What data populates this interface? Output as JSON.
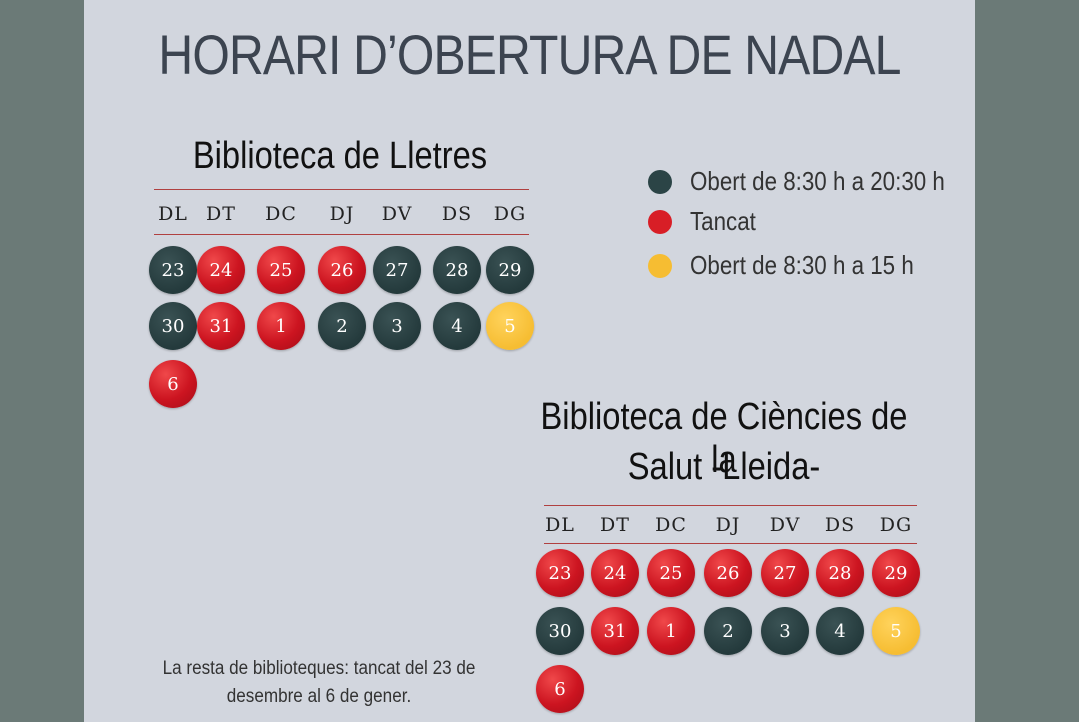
{
  "title": "HORARI D’OBERTURA DE NADAL",
  "colors": {
    "open": "#2b4446",
    "closed": "#d81e26",
    "half": "#f6bd32"
  },
  "legend": [
    {
      "status": "open",
      "label": "Obert de 8:30 h a 20:30 h"
    },
    {
      "status": "closed",
      "label": "Tancat"
    },
    {
      "status": "half",
      "label": "Obert de 8:30 h a 15 h"
    }
  ],
  "weekdays": [
    "DL",
    "DT",
    "DC",
    "DJ",
    "DV",
    "DS",
    "DG"
  ],
  "libraries": [
    {
      "name": "Biblioteca de Lletres",
      "days": [
        {
          "day": "23",
          "status": "open"
        },
        {
          "day": "24",
          "status": "closed"
        },
        {
          "day": "25",
          "status": "closed"
        },
        {
          "day": "26",
          "status": "closed"
        },
        {
          "day": "27",
          "status": "open"
        },
        {
          "day": "28",
          "status": "open"
        },
        {
          "day": "29",
          "status": "open"
        },
        {
          "day": "30",
          "status": "open"
        },
        {
          "day": "31",
          "status": "closed"
        },
        {
          "day": "1",
          "status": "closed"
        },
        {
          "day": "2",
          "status": "open"
        },
        {
          "day": "3",
          "status": "open"
        },
        {
          "day": "4",
          "status": "open"
        },
        {
          "day": "5",
          "status": "half"
        },
        {
          "day": "6",
          "status": "closed"
        }
      ]
    },
    {
      "name_line1": "Biblioteca de Ciències de la",
      "name_line2": "Salut -Lleida-",
      "days": [
        {
          "day": "23",
          "status": "closed"
        },
        {
          "day": "24",
          "status": "closed"
        },
        {
          "day": "25",
          "status": "closed"
        },
        {
          "day": "26",
          "status": "closed"
        },
        {
          "day": "27",
          "status": "closed"
        },
        {
          "day": "28",
          "status": "closed"
        },
        {
          "day": "29",
          "status": "closed"
        },
        {
          "day": "30",
          "status": "open"
        },
        {
          "day": "31",
          "status": "closed"
        },
        {
          "day": "1",
          "status": "closed"
        },
        {
          "day": "2",
          "status": "open"
        },
        {
          "day": "3",
          "status": "open"
        },
        {
          "day": "4",
          "status": "open"
        },
        {
          "day": "5",
          "status": "half"
        },
        {
          "day": "6",
          "status": "closed"
        }
      ]
    }
  ],
  "footer": {
    "line1": "La resta de biblioteques: tancat del 23 de",
    "line2": "desembre al 6 de gener."
  }
}
